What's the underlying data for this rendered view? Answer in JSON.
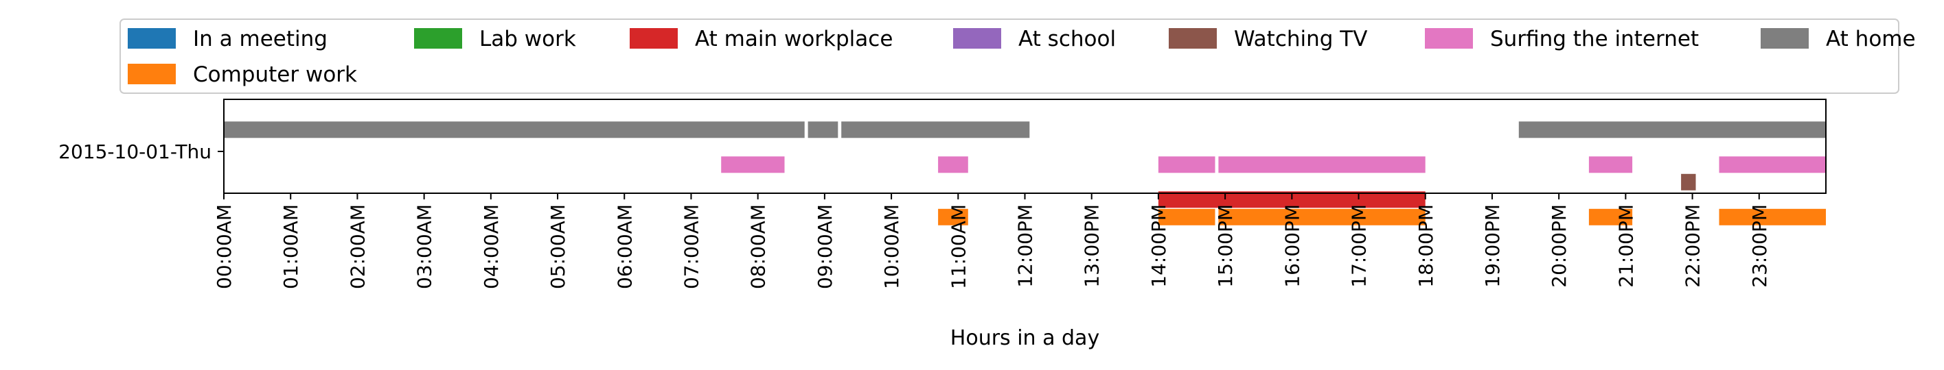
{
  "chart_data": {
    "type": "timeline",
    "xlabel": "Hours in a day",
    "x_unit": "hour of day",
    "xlim": [
      0,
      24
    ],
    "row_label": "2015-10-01-Thu",
    "xticks": [
      "00:00AM",
      "01:00AM",
      "02:00AM",
      "03:00AM",
      "04:00AM",
      "05:00AM",
      "06:00AM",
      "07:00AM",
      "08:00AM",
      "09:00AM",
      "10:00AM",
      "11:00AM",
      "12:00PM",
      "13:00PM",
      "14:00PM",
      "15:00PM",
      "16:00PM",
      "17:00PM",
      "18:00PM",
      "19:00PM",
      "20:00PM",
      "21:00PM",
      "22:00PM",
      "23:00PM"
    ],
    "legend_position": "top, above plot",
    "grid": false,
    "series": [
      {
        "name": "In a meeting",
        "color": "#1f77b4",
        "lane": 0,
        "intervals": []
      },
      {
        "name": "Lab work",
        "color": "#2ca02c",
        "lane": 0,
        "intervals": []
      },
      {
        "name": "At main workplace",
        "color": "#d62728",
        "lane": 5,
        "intervals": [
          [
            14.0,
            18.0
          ]
        ]
      },
      {
        "name": "At school",
        "color": "#9467bd",
        "lane": 0,
        "intervals": []
      },
      {
        "name": "Watching TV",
        "color": "#8c564b",
        "lane": 4,
        "intervals": [
          [
            21.83,
            22.05
          ]
        ]
      },
      {
        "name": "Surfing the internet",
        "color": "#e377c2",
        "lane": 3,
        "intervals": [
          [
            7.45,
            8.4
          ],
          [
            10.7,
            11.15
          ],
          [
            14.0,
            14.85
          ],
          [
            14.9,
            18.0
          ],
          [
            20.45,
            21.1
          ],
          [
            22.4,
            24.0
          ]
        ]
      },
      {
        "name": "At home",
        "color": "#7f7f7f",
        "lane": 1,
        "intervals": [
          [
            0.0,
            8.7
          ],
          [
            8.75,
            9.2
          ],
          [
            9.25,
            12.07
          ],
          [
            19.4,
            24.0
          ]
        ]
      },
      {
        "name": "Computer work",
        "color": "#ff7f0e",
        "lane": 6,
        "intervals": [
          [
            10.7,
            11.15
          ],
          [
            14.0,
            14.85
          ],
          [
            14.9,
            18.0
          ],
          [
            20.45,
            21.1
          ],
          [
            22.4,
            24.0
          ]
        ]
      }
    ]
  }
}
